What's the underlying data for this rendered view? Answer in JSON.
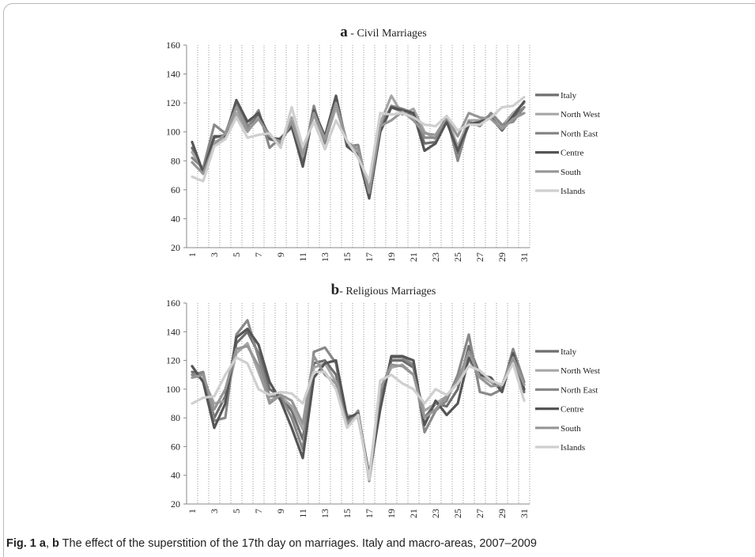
{
  "caption": {
    "label": "Fig. 1",
    "panel_a": "a",
    "separator": ", ",
    "panel_b": "b",
    "text": " The effect of the superstition of the 17th day on marriages. Italy and macro-areas, 2007–2009"
  },
  "colors": {
    "Italy": "#6e6e6e",
    "North West": "#a6a6a6",
    "North East": "#888888",
    "Centre": "#555555",
    "South": "#969696",
    "Islands": "#cfcfcf"
  },
  "chart_data": [
    {
      "type": "line",
      "title_letter": "a",
      "title": " - Civil Marriages",
      "ylim": [
        20,
        160
      ],
      "yticks": [
        20,
        40,
        60,
        80,
        100,
        120,
        140,
        160
      ],
      "x": [
        1,
        2,
        3,
        4,
        5,
        6,
        7,
        8,
        9,
        10,
        11,
        12,
        13,
        14,
        15,
        16,
        17,
        18,
        19,
        20,
        21,
        22,
        23,
        24,
        25,
        26,
        27,
        28,
        29,
        30,
        31
      ],
      "xtick_labels": [
        "1",
        "3",
        "5",
        "7",
        "9",
        "11",
        "13",
        "15",
        "17",
        "19",
        "21",
        "23",
        "25",
        "27",
        "29",
        "31"
      ],
      "legend": [
        "Italy",
        "North West",
        "North East",
        "Centre",
        "South",
        "Islands"
      ],
      "series": [
        {
          "name": "Italy",
          "values": [
            89,
            72,
            96,
            98,
            120,
            104,
            111,
            95,
            93,
            106,
            82,
            114,
            94,
            122,
            92,
            88,
            58,
            105,
            117,
            114,
            112,
            92,
            93,
            110,
            85,
            105,
            107,
            112,
            103,
            110,
            117
          ]
        },
        {
          "name": "North West",
          "values": [
            86,
            73,
            93,
            96,
            113,
            100,
            110,
            98,
            91,
            110,
            85,
            112,
            93,
            117,
            93,
            86,
            60,
            106,
            125,
            112,
            116,
            100,
            95,
            110,
            90,
            108,
            108,
            111,
            104,
            113,
            120
          ]
        },
        {
          "name": "North East",
          "values": [
            82,
            75,
            105,
            99,
            119,
            103,
            115,
            89,
            96,
            103,
            79,
            118,
            92,
            124,
            90,
            91,
            55,
            102,
            118,
            116,
            113,
            96,
            96,
            111,
            80,
            107,
            104,
            113,
            105,
            107,
            117
          ]
        },
        {
          "name": "Centre",
          "values": [
            93,
            72,
            97,
            97,
            122,
            107,
            113,
            96,
            95,
            104,
            76,
            115,
            97,
            125,
            90,
            84,
            54,
            100,
            117,
            115,
            113,
            87,
            92,
            107,
            87,
            105,
            107,
            110,
            101,
            111,
            121
          ]
        },
        {
          "name": "South",
          "values": [
            79,
            71,
            91,
            99,
            117,
            101,
            109,
            97,
            93,
            107,
            83,
            113,
            95,
            120,
            93,
            88,
            58,
            104,
            108,
            114,
            108,
            99,
            98,
            110,
            97,
            113,
            110,
            109,
            102,
            109,
            113
          ]
        },
        {
          "name": "Islands",
          "values": [
            69,
            66,
            90,
            95,
            110,
            96,
            98,
            99,
            89,
            117,
            90,
            107,
            88,
            108,
            94,
            82,
            66,
            113,
            112,
            113,
            110,
            105,
            104,
            111,
            101,
            105,
            105,
            110,
            117,
            118,
            124
          ]
        }
      ]
    },
    {
      "type": "line",
      "title_letter": "b",
      "title": "- Religious Marriages",
      "ylim": [
        20,
        160
      ],
      "yticks": [
        20,
        40,
        60,
        80,
        100,
        120,
        140,
        160
      ],
      "x": [
        1,
        2,
        3,
        4,
        5,
        6,
        7,
        8,
        9,
        10,
        11,
        12,
        13,
        14,
        15,
        16,
        17,
        18,
        19,
        20,
        21,
        22,
        23,
        24,
        25,
        26,
        27,
        28,
        29,
        30,
        31
      ],
      "xtick_labels": [
        "1",
        "3",
        "5",
        "7",
        "9",
        "11",
        "13",
        "15",
        "17",
        "19",
        "21",
        "23",
        "25",
        "27",
        "29",
        "31"
      ],
      "legend": [
        "Italy",
        "North West",
        "North East",
        "Centre",
        "South",
        "Islands"
      ],
      "series": [
        {
          "name": "Italy",
          "values": [
            112,
            110,
            80,
            95,
            132,
            140,
            125,
            100,
            95,
            85,
            65,
            118,
            120,
            110,
            78,
            84,
            38,
            95,
            120,
            120,
            115,
            80,
            90,
            88,
            100,
            130,
            110,
            105,
            100,
            125,
            98
          ]
        },
        {
          "name": "North West",
          "values": [
            110,
            107,
            90,
            92,
            125,
            132,
            112,
            92,
            95,
            88,
            72,
            115,
            118,
            105,
            82,
            80,
            40,
            100,
            115,
            117,
            110,
            85,
            90,
            95,
            105,
            120,
            110,
            105,
            102,
            120,
            100
          ]
        },
        {
          "name": "North East",
          "values": [
            110,
            112,
            78,
            80,
            138,
            148,
            122,
            95,
            95,
            80,
            58,
            126,
            129,
            118,
            75,
            85,
            36,
            90,
            122,
            122,
            117,
            70,
            85,
            92,
            110,
            138,
            98,
            96,
            100,
            128,
            105
          ]
        },
        {
          "name": "Centre",
          "values": [
            116,
            105,
            73,
            90,
            136,
            142,
            131,
            105,
            92,
            73,
            52,
            108,
            118,
            120,
            80,
            83,
            40,
            86,
            123,
            123,
            120,
            75,
            92,
            82,
            90,
            122,
            110,
            108,
            98,
            125,
            100
          ]
        },
        {
          "name": "South",
          "values": [
            108,
            110,
            86,
            100,
            128,
            130,
            116,
            90,
            96,
            92,
            76,
            123,
            110,
            104,
            76,
            82,
            37,
            100,
            117,
            116,
            110,
            80,
            86,
            95,
            106,
            126,
            108,
            102,
            103,
            122,
            103
          ]
        },
        {
          "name": "Islands",
          "values": [
            90,
            94,
            95,
            110,
            122,
            118,
            100,
            96,
            98,
            97,
            90,
            112,
            112,
            100,
            73,
            82,
            37,
            106,
            110,
            104,
            100,
            90,
            100,
            96,
            104,
            116,
            113,
            106,
            103,
            118,
            92
          ]
        }
      ]
    }
  ]
}
